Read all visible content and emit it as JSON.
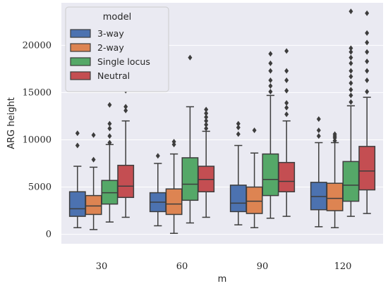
{
  "chart_data": {
    "type": "boxplot",
    "xlabel": "m",
    "ylabel": "ARG height",
    "categories": [
      "30",
      "60",
      "90",
      "120"
    ],
    "ylim": [
      -1000,
      24500
    ],
    "yticks": [
      0,
      5000,
      10000,
      15000,
      20000
    ],
    "grid": true,
    "legend": {
      "title": "model",
      "placement": "top-left"
    },
    "series": [
      {
        "name": "3-way",
        "color": "#4c72b0",
        "boxes": [
          {
            "whisker_low": 700,
            "q1": 1900,
            "median": 2700,
            "q3": 4500,
            "whisker_high": 7200,
            "outliers": [
              9400,
              10700
            ]
          },
          {
            "whisker_low": 900,
            "q1": 2400,
            "median": 3400,
            "q3": 4400,
            "whisker_high": 7500,
            "outliers": [
              8300
            ]
          },
          {
            "whisker_low": 1000,
            "q1": 2400,
            "median": 3300,
            "q3": 5200,
            "whisker_high": 9400,
            "outliers": [
              10600,
              11300,
              11700
            ]
          },
          {
            "whisker_low": 800,
            "q1": 2600,
            "median": 4000,
            "q3": 5500,
            "whisker_high": 9700,
            "outliers": [
              10400,
              11000,
              12200
            ]
          }
        ]
      },
      {
        "name": "2-way",
        "color": "#dd8452",
        "boxes": [
          {
            "whisker_low": 500,
            "q1": 2100,
            "median": 3000,
            "q3": 4100,
            "whisker_high": 7100,
            "outliers": [
              7900,
              10500
            ]
          },
          {
            "whisker_low": 100,
            "q1": 2100,
            "median": 3200,
            "q3": 4800,
            "whisker_high": 8500,
            "outliers": [
              9500,
              9800
            ]
          },
          {
            "whisker_low": 700,
            "q1": 2200,
            "median": 3500,
            "q3": 5000,
            "whisker_high": 8600,
            "outliers": [
              11000
            ]
          },
          {
            "whisker_low": 700,
            "q1": 2500,
            "median": 3800,
            "q3": 5400,
            "whisker_high": 9700,
            "outliers": [
              9900,
              10200,
              10400,
              10600
            ]
          }
        ]
      },
      {
        "name": "Single locus",
        "color": "#55a868",
        "boxes": [
          {
            "whisker_low": 1300,
            "q1": 3200,
            "median": 4400,
            "q3": 5700,
            "whisker_high": 9500,
            "outliers": [
              9700,
              10400,
              11200,
              11700,
              13700
            ]
          },
          {
            "whisker_low": 1200,
            "q1": 3600,
            "median": 5300,
            "q3": 8100,
            "whisker_high": 13500,
            "outliers": [
              18700
            ]
          },
          {
            "whisker_low": 1700,
            "q1": 4100,
            "median": 5800,
            "q3": 8500,
            "whisker_high": 14700,
            "outliers": [
              15100,
              15700,
              16300,
              17300,
              18100,
              19100
            ]
          },
          {
            "whisker_low": 1900,
            "q1": 3500,
            "median": 5200,
            "q3": 7700,
            "whisker_high": 13600,
            "outliers": [
              14000,
              14700,
              15300,
              16000,
              16700,
              17300,
              18100,
              18700,
              19300,
              19700,
              23600
            ]
          }
        ]
      },
      {
        "name": "Neutral",
        "color": "#c44e52",
        "boxes": [
          {
            "whisker_low": 1800,
            "q1": 3900,
            "median": 5100,
            "q3": 7300,
            "whisker_high": 12000,
            "outliers": [
              13100,
              13500,
              15200
            ]
          },
          {
            "whisker_low": 1800,
            "q1": 4500,
            "median": 5800,
            "q3": 7200,
            "whisker_high": 10900,
            "outliers": [
              11200,
              11600,
              12000,
              12400,
              12800,
              13200
            ]
          },
          {
            "whisker_low": 1900,
            "q1": 4500,
            "median": 5600,
            "q3": 7600,
            "whisker_high": 12000,
            "outliers": [
              12700,
              13400,
              13900,
              15200,
              16300,
              17300,
              19400
            ]
          },
          {
            "whisker_low": 2200,
            "q1": 4700,
            "median": 6700,
            "q3": 9300,
            "whisker_high": 14500,
            "outliers": [
              15100,
              16300,
              17300,
              18300,
              19300,
              20300,
              21300,
              23400
            ]
          }
        ]
      }
    ]
  }
}
